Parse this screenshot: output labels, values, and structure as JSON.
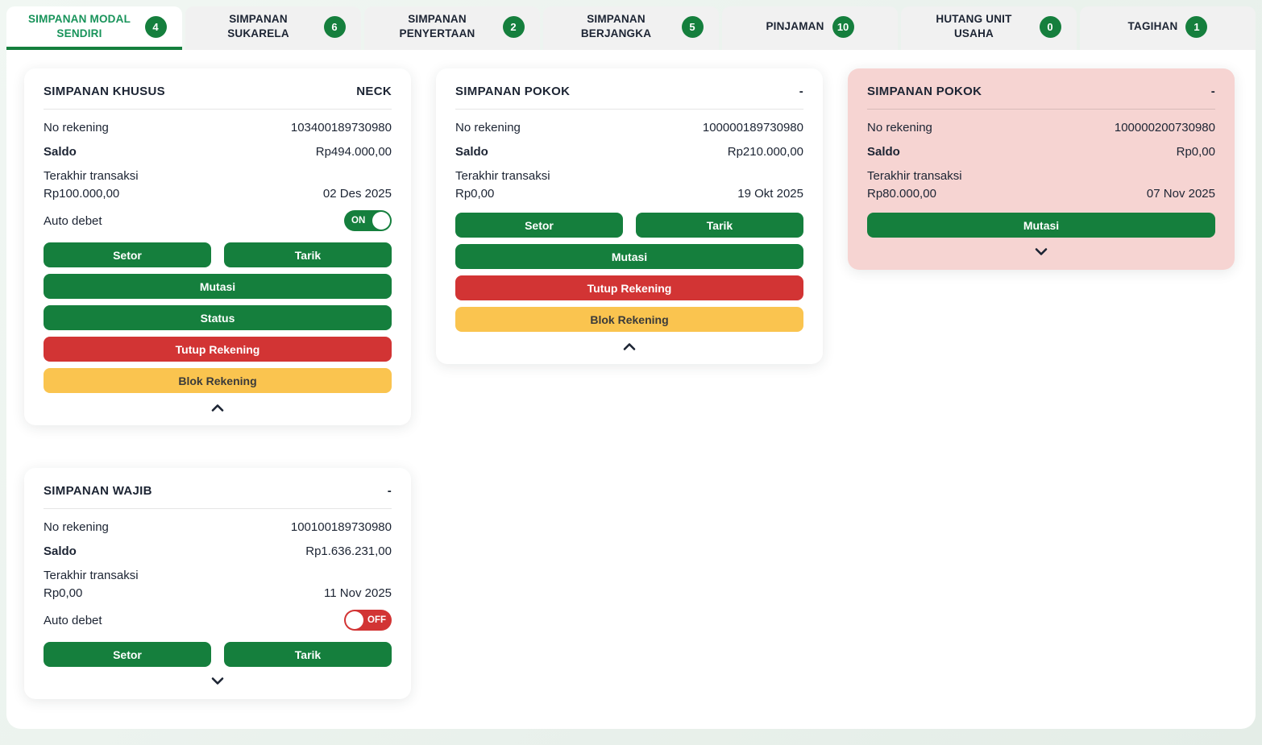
{
  "tab_bar": {
    "tabs": [
      {
        "label": "SIMPANAN MODAL SENDIRI",
        "count": "4",
        "active": true
      },
      {
        "label": "SIMPANAN SUKARELA",
        "count": "6",
        "active": false
      },
      {
        "label": "SIMPANAN PENYERTAAN",
        "count": "2",
        "active": false
      },
      {
        "label": "SIMPANAN BERJANGKA",
        "count": "5",
        "active": false
      },
      {
        "label": "PINJAMAN",
        "count": "10",
        "active": false
      },
      {
        "label": "HUTANG UNIT USAHA",
        "count": "0",
        "active": false
      },
      {
        "label": "TAGIHAN",
        "count": "1",
        "active": false
      }
    ]
  },
  "field_labels": {
    "no_rekening": "No rekening",
    "saldo": "Saldo",
    "terakhir_transaksi": "Terakhir transaksi",
    "auto_debet": "Auto debet"
  },
  "cards": [
    {
      "title": "SIMPANAN KHUSUS",
      "tag": "NECK",
      "column": 0,
      "highlight": false,
      "no_rekening": "103400189730980",
      "saldo": "Rp494.000,00",
      "terakhir_amount": "Rp100.000,00",
      "terakhir_date": "02 Des 2025",
      "auto_debet": "ON",
      "buttons": [
        {
          "label": "Setor",
          "style": "green",
          "width": "half"
        },
        {
          "label": "Tarik",
          "style": "green",
          "width": "half"
        },
        {
          "label": "Mutasi",
          "style": "green",
          "width": "full"
        },
        {
          "label": "Status",
          "style": "green",
          "width": "full"
        },
        {
          "label": "Tutup Rekening",
          "style": "red",
          "width": "full"
        },
        {
          "label": "Blok Rekening",
          "style": "yellow",
          "width": "full"
        }
      ],
      "chevron": "up"
    },
    {
      "title": "SIMPANAN POKOK",
      "tag": "-",
      "column": 1,
      "highlight": false,
      "no_rekening": "100000189730980",
      "saldo": "Rp210.000,00",
      "terakhir_amount": "Rp0,00",
      "terakhir_date": "19 Okt 2025",
      "auto_debet": null,
      "buttons": [
        {
          "label": "Setor",
          "style": "green",
          "width": "half"
        },
        {
          "label": "Tarik",
          "style": "green",
          "width": "half"
        },
        {
          "label": "Mutasi",
          "style": "green",
          "width": "full"
        },
        {
          "label": "Tutup Rekening",
          "style": "red",
          "width": "full"
        },
        {
          "label": "Blok Rekening",
          "style": "yellow",
          "width": "full"
        }
      ],
      "chevron": "up"
    },
    {
      "title": "SIMPANAN POKOK",
      "tag": "-",
      "column": 2,
      "highlight": true,
      "no_rekening": "100000200730980",
      "saldo": "Rp0,00",
      "terakhir_amount": "Rp80.000,00",
      "terakhir_date": "07 Nov 2025",
      "auto_debet": null,
      "buttons": [
        {
          "label": "Mutasi",
          "style": "green",
          "width": "full"
        }
      ],
      "chevron": "down"
    },
    {
      "title": "SIMPANAN WAJIB",
      "tag": "-",
      "column": 0,
      "highlight": false,
      "no_rekening": "100100189730980",
      "saldo": "Rp1.636.231,00",
      "terakhir_amount": "Rp0,00",
      "terakhir_date": "11 Nov 2025",
      "auto_debet": "OFF",
      "buttons": [
        {
          "label": "Setor",
          "style": "green",
          "width": "half"
        },
        {
          "label": "Tarik",
          "style": "green",
          "width": "half"
        }
      ],
      "chevron": "down"
    }
  ],
  "colors": {
    "green": "#157F3D",
    "active_tab_green": "#18935A",
    "red": "#D23434",
    "yellow": "#FAC44F",
    "pink_card": "#F6D4D2",
    "tab_inactive": "#F1F1F1",
    "text_dark": "#1C2433",
    "mint_bg": "#E8F0EA"
  }
}
